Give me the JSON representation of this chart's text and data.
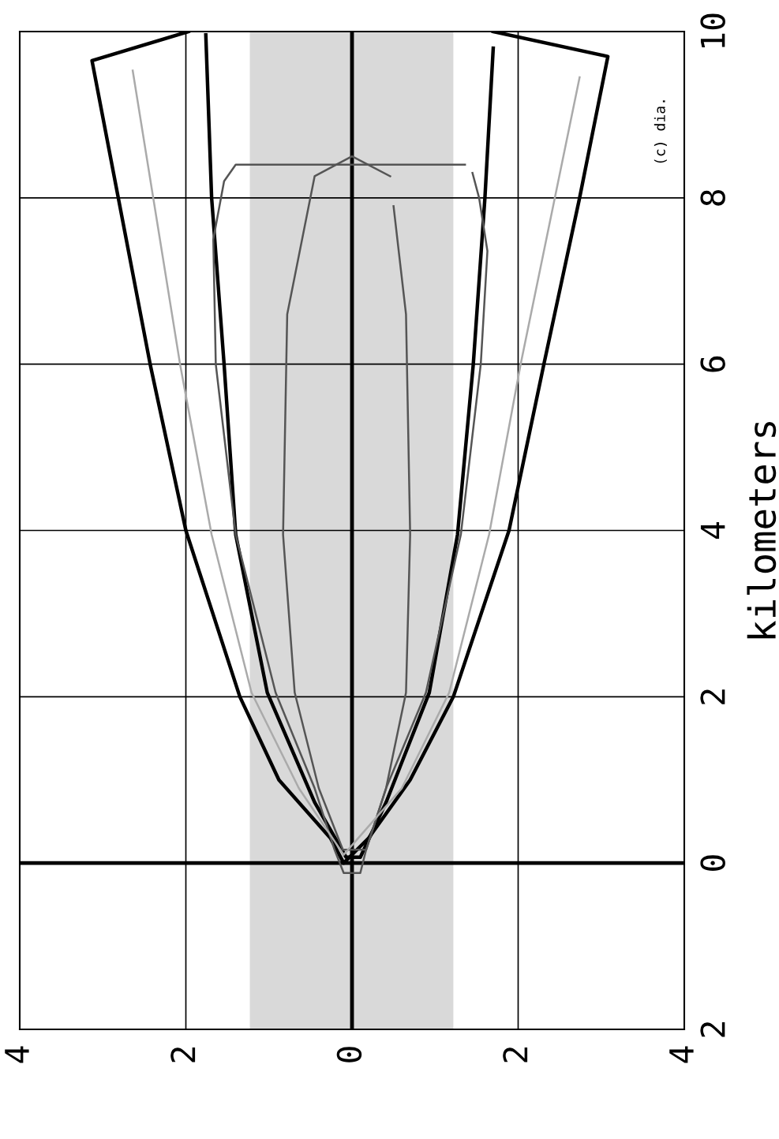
{
  "chart_data": {
    "type": "line",
    "ylabel": "kilometers",
    "xlim": [
      4,
      -4
    ],
    "xticks": [
      {
        "value": 4,
        "label": "4"
      },
      {
        "value": 2,
        "label": "2"
      },
      0,
      {
        "value": -2,
        "label": "2"
      },
      {
        "value": -4,
        "label": "4"
      }
    ],
    "ylim": [
      -2,
      10
    ],
    "yticks": [
      {
        "value": -2,
        "label": "2"
      },
      0,
      2,
      4,
      6,
      8,
      10
    ],
    "grid": true,
    "legend": false,
    "bands": [
      {
        "axis": "x",
        "from": 1.23,
        "to": -1.22,
        "color": "#d9d9d9"
      }
    ],
    "annotations": [
      "(c) dia."
    ],
    "series": [
      {
        "color": "#000000",
        "x": [
          1.97,
          3.13,
          2.43,
          2.0,
          1.35,
          0.88,
          0.26,
          0.1,
          -0.2,
          -0.7,
          -1.22,
          -1.89,
          -2.31,
          -2.74,
          -3.08,
          -1.7
        ],
        "values": [
          10.0,
          9.65,
          6.0,
          4.0,
          2.0,
          1.0,
          0.3,
          0.0,
          0.3,
          1.0,
          2.0,
          4.0,
          6.0,
          8.0,
          9.7,
          10.0
        ]
      },
      {
        "color": "#000000",
        "x": [
          1.76,
          1.69,
          1.54,
          1.4,
          1.02,
          0.45,
          0.07,
          -0.1,
          -0.41,
          -0.93,
          -1.27,
          -1.46,
          -1.6,
          -1.7
        ],
        "values": [
          9.96,
          8.0,
          6.0,
          3.95,
          2.05,
          0.73,
          0.07,
          0.07,
          0.73,
          2.05,
          3.95,
          6.0,
          8.0,
          9.8
        ]
      },
      {
        "color": "#555555",
        "x": [
          -1.36,
          1.4,
          1.54,
          1.67,
          1.64,
          1.4,
          0.92,
          0.45,
          0.21,
          0.1,
          -0.1,
          -0.17,
          -0.41,
          -0.89,
          -1.31,
          -1.55,
          -1.63,
          -1.53,
          -1.45
        ],
        "values": [
          8.4,
          8.4,
          8.2,
          7.5,
          6.0,
          3.95,
          2.05,
          0.9,
          0.16,
          -0.12,
          -0.12,
          0.16,
          0.9,
          2.05,
          3.95,
          6.0,
          7.36,
          8.0,
          8.3
        ]
      },
      {
        "color": "#555555",
        "x": [
          -0.46,
          0.0,
          0.45,
          0.78,
          0.83,
          0.69,
          0.4,
          0.11,
          -0.17,
          -0.41,
          -0.65,
          -0.7,
          -0.65,
          -0.5
        ],
        "values": [
          8.26,
          8.5,
          8.26,
          6.6,
          3.95,
          2.05,
          0.9,
          0.16,
          0.16,
          0.9,
          2.05,
          3.95,
          6.6,
          7.9
        ]
      },
      {
        "color": "#aaaaaa",
        "x": [
          2.64,
          2.07,
          1.69,
          1.21,
          0.64,
          0.1,
          -0.6,
          -1.17,
          -1.65,
          -2.03,
          -2.74
        ],
        "values": [
          9.53,
          6.0,
          3.95,
          2.05,
          0.9,
          0.1,
          0.9,
          2.05,
          3.95,
          6.0,
          9.45
        ]
      }
    ]
  }
}
